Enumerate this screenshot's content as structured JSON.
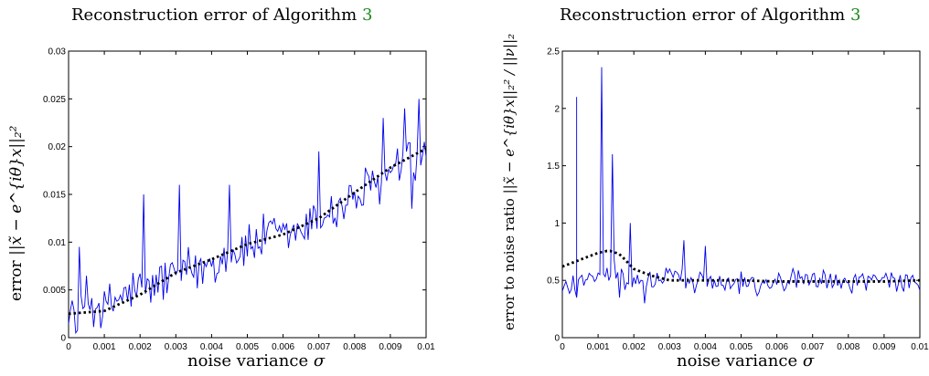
{
  "figure": {
    "left": {
      "title_text": "Reconstruction error of Algorithm ",
      "title_ref": "3",
      "xlabel_text": "noise variance ",
      "xlabel_sym": "σ",
      "ylabel_text": "error ",
      "ylabel_formula": "||x̃ − e^{iθ}x||₂²"
    },
    "right": {
      "title_text": "Reconstruction error of Algorithm ",
      "title_ref": "3",
      "xlabel_text": "noise variance ",
      "xlabel_sym": "σ",
      "ylabel_text": "error to noise ratio ",
      "ylabel_formula": "||x̃ − e^{iθ}x||₂² / ||ν||₂"
    }
  },
  "chart_data": [
    {
      "type": "line",
      "title": "Reconstruction error of Algorithm 3",
      "xlabel": "noise variance σ",
      "ylabel": "error ||x̃ − e^{iθ}x||₂²",
      "xlim": [
        0,
        0.01
      ],
      "ylim": [
        0,
        0.03
      ],
      "x_ticks": [
        "0",
        "0.001",
        "0.002",
        "0.003",
        "0.004",
        "0.005",
        "0.006",
        "0.007",
        "0.008",
        "0.009",
        "0.01"
      ],
      "y_ticks": [
        "0",
        "0.005",
        "0.01",
        "0.015",
        "0.02",
        "0.025",
        "0.03"
      ],
      "grid": false,
      "series": [
        {
          "style": "solid",
          "color": "#0000ee",
          "x": [
            0,
            0.0005,
            0.001,
            0.0015,
            0.002,
            0.0025,
            0.003,
            0.0035,
            0.004,
            0.0045,
            0.005,
            0.0055,
            0.006,
            0.0065,
            0.007,
            0.0075,
            0.008,
            0.0085,
            0.009,
            0.0095,
            0.01
          ],
          "values": [
            0.0025,
            0.004,
            0.0028,
            0.0045,
            0.005,
            0.0058,
            0.007,
            0.0068,
            0.008,
            0.0088,
            0.0095,
            0.0105,
            0.0108,
            0.011,
            0.0125,
            0.0135,
            0.0148,
            0.0155,
            0.017,
            0.0185,
            0.0185
          ],
          "peaks": [
            {
              "x": 0.0003,
              "y": 0.0095
            },
            {
              "x": 0.0021,
              "y": 0.015
            },
            {
              "x": 0.0031,
              "y": 0.016
            },
            {
              "x": 0.0045,
              "y": 0.016
            },
            {
              "x": 0.007,
              "y": 0.0195
            },
            {
              "x": 0.0088,
              "y": 0.023
            },
            {
              "x": 0.0094,
              "y": 0.024
            },
            {
              "x": 0.0098,
              "y": 0.025
            }
          ],
          "troughs": [
            {
              "x": 0.0002,
              "y": 0.0005
            },
            {
              "x": 0.0009,
              "y": 0.001
            },
            {
              "x": 0.0096,
              "y": 0.0135
            }
          ]
        },
        {
          "style": "dotted",
          "color": "#000000",
          "x": [
            0,
            0.001,
            0.002,
            0.003,
            0.004,
            0.005,
            0.006,
            0.007,
            0.008,
            0.009,
            0.01
          ],
          "values": [
            0.0025,
            0.0028,
            0.0045,
            0.0068,
            0.0082,
            0.0098,
            0.0108,
            0.0125,
            0.0152,
            0.0178,
            0.0198
          ]
        }
      ]
    },
    {
      "type": "line",
      "title": "Reconstruction error of Algorithm 3",
      "xlabel": "noise variance σ",
      "ylabel": "error to noise ratio ||x̃ − e^{iθ}x||₂² / ||ν||₂",
      "xlim": [
        0,
        0.01
      ],
      "ylim": [
        0,
        2.5
      ],
      "x_ticks": [
        "0",
        "0.001",
        "0.002",
        "0.003",
        "0.004",
        "0.005",
        "0.006",
        "0.007",
        "0.008",
        "0.009",
        "0.01"
      ],
      "y_ticks": [
        "0",
        "0.5",
        "1",
        "1.5",
        "2",
        "2.5"
      ],
      "grid": false,
      "series": [
        {
          "style": "solid",
          "color": "#0000ee",
          "x": [
            0,
            0.0005,
            0.001,
            0.0015,
            0.002,
            0.0025,
            0.003,
            0.0035,
            0.004,
            0.0045,
            0.005,
            0.0055,
            0.006,
            0.0065,
            0.007,
            0.0075,
            0.008,
            0.0085,
            0.009,
            0.0095,
            0.01
          ],
          "values": [
            0.4,
            0.55,
            0.5,
            0.6,
            0.45,
            0.5,
            0.55,
            0.5,
            0.5,
            0.48,
            0.5,
            0.47,
            0.5,
            0.5,
            0.48,
            0.5,
            0.47,
            0.5,
            0.52,
            0.48,
            0.5
          ],
          "peaks": [
            {
              "x": 0.0004,
              "y": 2.1
            },
            {
              "x": 0.0011,
              "y": 2.36
            },
            {
              "x": 0.0014,
              "y": 1.6
            },
            {
              "x": 0.0019,
              "y": 1.0
            },
            {
              "x": 0.0034,
              "y": 0.85
            },
            {
              "x": 0.004,
              "y": 0.8
            }
          ],
          "troughs": [
            {
              "x": 0.0004,
              "y": 0.35
            },
            {
              "x": 0.0016,
              "y": 0.35
            },
            {
              "x": 0.0023,
              "y": 0.3
            }
          ]
        },
        {
          "style": "dotted",
          "color": "#000000",
          "x": [
            0,
            0.0005,
            0.001,
            0.0013,
            0.0016,
            0.002,
            0.0025,
            0.003,
            0.004,
            0.005,
            0.006,
            0.007,
            0.008,
            0.009,
            0.01
          ],
          "values": [
            0.62,
            0.68,
            0.74,
            0.76,
            0.73,
            0.6,
            0.54,
            0.5,
            0.5,
            0.5,
            0.49,
            0.49,
            0.49,
            0.49,
            0.5
          ]
        }
      ]
    }
  ]
}
